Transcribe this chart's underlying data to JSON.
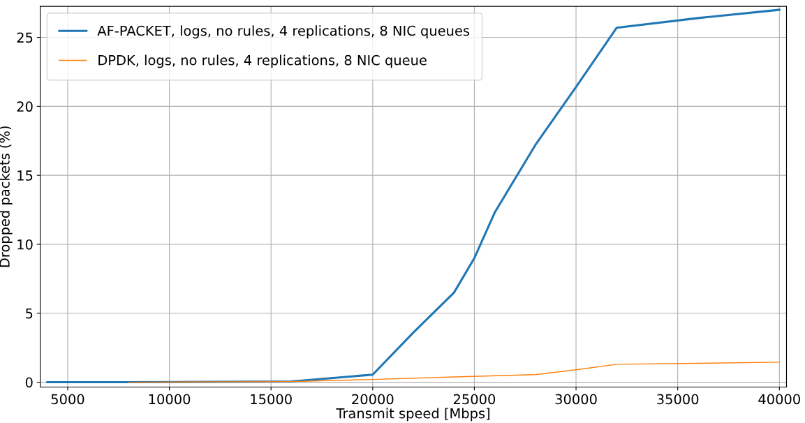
{
  "chart_data": {
    "type": "line",
    "xlabel": "Transmit speed [Mbps]",
    "ylabel": "Dropped packets (%)",
    "xlim": [
      3650,
      40350
    ],
    "ylim": [
      -0.35,
      27.25
    ],
    "xticks": [
      5000,
      10000,
      15000,
      20000,
      25000,
      30000,
      35000,
      40000
    ],
    "yticks": [
      0,
      5,
      10,
      15,
      20,
      25
    ],
    "grid": true,
    "legend": "top left",
    "line_style": "solid",
    "marker": "none",
    "series": [
      {
        "name": "AF-PACKET, logs, no rules, 4 replications, 8 NIC queues",
        "color": "#1f77b4",
        "x": [
          4000,
          8000,
          16000,
          20000,
          22000,
          24000,
          25000,
          26000,
          28000,
          30000,
          32000,
          36000,
          40000
        ],
        "values": [
          0,
          0,
          0.05,
          0.55,
          3.6,
          6.5,
          9.0,
          12.3,
          17.2,
          21.4,
          25.7,
          26.4,
          27.0
        ]
      },
      {
        "name": "DPDK, logs, no rules, 4 replications, 8 NIC queue",
        "color": "#ff7f0e",
        "x": [
          8000,
          16000,
          20000,
          24000,
          28000,
          30000,
          32000,
          36000,
          40000
        ],
        "values": [
          0,
          0.05,
          0.2,
          0.38,
          0.55,
          0.9,
          1.3,
          1.37,
          1.45
        ]
      }
    ]
  }
}
